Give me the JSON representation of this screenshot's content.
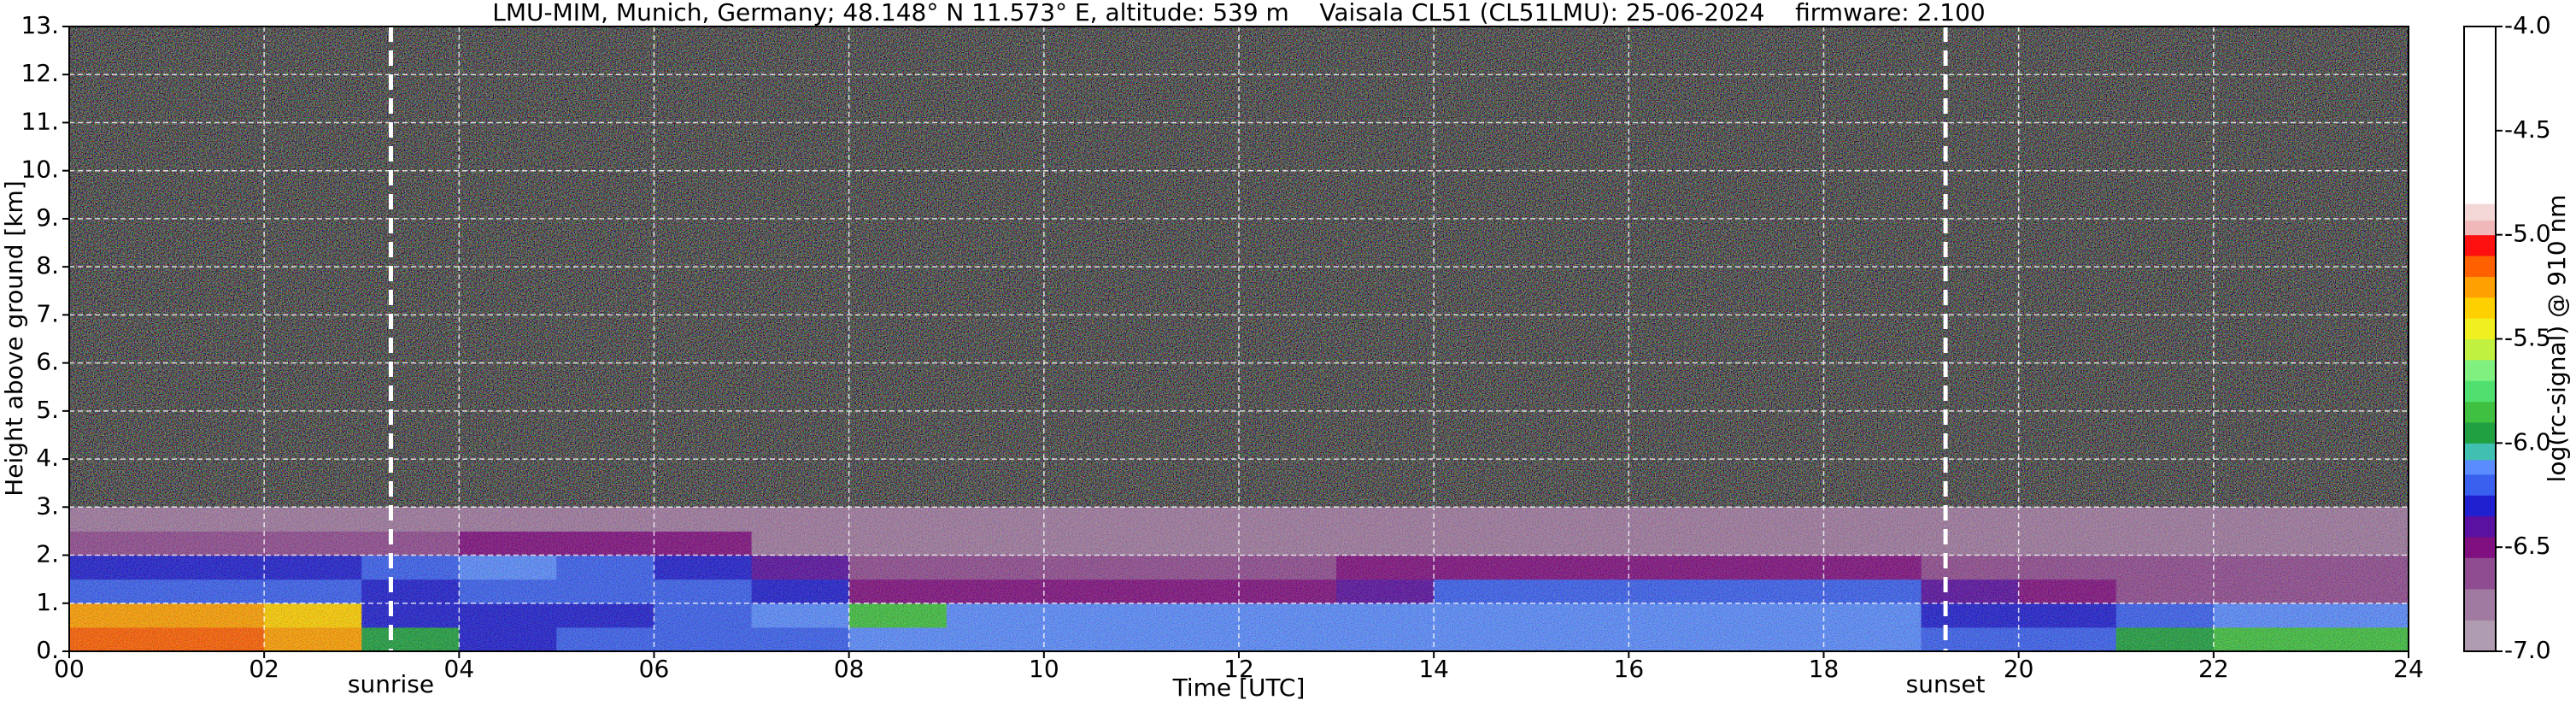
{
  "chart_data": {
    "type": "heatmap",
    "title": "LMU-MIM, Munich, Germany; 48.148° N 11.573° E, altitude: 539 m    Vaisala CL51 (CL51LMU): 25-06-2024    firmware: 2.100",
    "xlabel": "Time [UTC]",
    "ylabel": "Height above ground [km]",
    "colorbar_label": "log(rc-signal) @ 910 nm",
    "xlim": [
      0,
      24
    ],
    "xticks": [
      {
        "value": 0,
        "label": "00"
      },
      {
        "value": 2,
        "label": "02"
      },
      {
        "value": 4,
        "label": "04"
      },
      {
        "value": 6,
        "label": "06"
      },
      {
        "value": 8,
        "label": "08"
      },
      10,
      12,
      14,
      16,
      18,
      20,
      22,
      24
    ],
    "ylim": [
      0,
      13
    ],
    "yticks": [
      {
        "value": 0,
        "label": "0."
      },
      {
        "value": 1,
        "label": "1."
      },
      {
        "value": 2,
        "label": "2."
      },
      {
        "value": 3,
        "label": "3."
      },
      {
        "value": 4,
        "label": "4."
      },
      {
        "value": 5,
        "label": "5."
      },
      {
        "value": 6,
        "label": "6."
      },
      {
        "value": 7,
        "label": "7."
      },
      {
        "value": 8,
        "label": "8."
      },
      {
        "value": 9,
        "label": "9."
      },
      {
        "value": 10,
        "label": "10."
      },
      {
        "value": 11,
        "label": "11."
      },
      {
        "value": 12,
        "label": "12."
      },
      {
        "value": 13,
        "label": "13."
      }
    ],
    "clim": [
      -7,
      -4
    ],
    "cticks": [
      {
        "value": -4,
        "label": "-4.0"
      },
      -4.5,
      {
        "value": -5,
        "label": "-5.0"
      },
      -5.5,
      {
        "value": -6,
        "label": "-6.0"
      },
      -6.5,
      {
        "value": -7,
        "label": "-7.0"
      }
    ],
    "colorscale": [
      {
        "value": -7.0,
        "color": "#b09cb0"
      },
      {
        "value": -6.85,
        "color": "#a07aa0"
      },
      {
        "value": -6.7,
        "color": "#904c90"
      },
      {
        "value": -6.55,
        "color": "#801080"
      },
      {
        "value": -6.45,
        "color": "#5a10a0"
      },
      {
        "value": -6.35,
        "color": "#2020d0"
      },
      {
        "value": -6.25,
        "color": "#3a60f0"
      },
      {
        "value": -6.15,
        "color": "#5a8cff"
      },
      {
        "value": -6.08,
        "color": "#40c0b0"
      },
      {
        "value": -6.0,
        "color": "#20a040"
      },
      {
        "value": -5.9,
        "color": "#40c040"
      },
      {
        "value": -5.8,
        "color": "#50e070"
      },
      {
        "value": -5.7,
        "color": "#80f080"
      },
      {
        "value": -5.6,
        "color": "#c0f040"
      },
      {
        "value": -5.5,
        "color": "#f0f020"
      },
      {
        "value": -5.4,
        "color": "#ffd000"
      },
      {
        "value": -5.3,
        "color": "#ffa000"
      },
      {
        "value": -5.2,
        "color": "#ff6000"
      },
      {
        "value": -5.1,
        "color": "#ff1010"
      },
      {
        "value": -5.0,
        "color": "#f0b8b8"
      },
      {
        "value": -4.93,
        "color": "#f4d8d8"
      },
      {
        "value": -4.85,
        "color": "#ffffff"
      }
    ],
    "x_edges": [
      0,
      1,
      2,
      3,
      4,
      5,
      6,
      7,
      8,
      9,
      10,
      11,
      12,
      13,
      14,
      15,
      16,
      17,
      18,
      19,
      20,
      21,
      22,
      23,
      24
    ],
    "y_edges": [
      0,
      0.5,
      1,
      1.5,
      2,
      2.5,
      3
    ],
    "z": [
      [
        -5.2,
        -5.2,
        -5.25,
        -6.0,
        -6.3,
        -6.25,
        -6.2,
        -6.2,
        -6.1,
        -6.1,
        -6.1,
        -6.1,
        -6.1,
        -6.1,
        -6.1,
        -6.1,
        -6.1,
        -6.1,
        -6.1,
        -6.2,
        -6.2,
        -6.0,
        -5.9,
        -5.9
      ],
      [
        -5.3,
        -5.3,
        -5.4,
        -6.35,
        -6.35,
        -6.3,
        -6.2,
        -6.15,
        -5.9,
        -6.15,
        -6.15,
        -6.15,
        -6.15,
        -6.15,
        -6.15,
        -6.15,
        -6.15,
        -6.15,
        -6.15,
        -6.3,
        -6.3,
        -6.2,
        -6.1,
        -6.1
      ],
      [
        -6.25,
        -6.25,
        -6.25,
        -6.3,
        -6.2,
        -6.2,
        -6.2,
        -6.3,
        -6.5,
        -6.5,
        -6.5,
        -6.5,
        -6.5,
        -6.4,
        -6.25,
        -6.25,
        -6.25,
        -6.25,
        -6.25,
        -6.45,
        -6.5,
        -6.6,
        -6.6,
        -6.6
      ],
      [
        -6.3,
        -6.3,
        -6.3,
        -6.2,
        -6.15,
        -6.2,
        -6.3,
        -6.45,
        -6.6,
        -6.6,
        -6.6,
        -6.6,
        -6.6,
        -6.55,
        -6.55,
        -6.55,
        -6.55,
        -6.55,
        -6.55,
        -6.6,
        -6.6,
        -6.7,
        -6.7,
        -6.7
      ],
      [
        -6.6,
        -6.6,
        -6.6,
        -6.6,
        -6.5,
        -6.5,
        -6.5,
        -6.75,
        -6.75,
        -6.75,
        -6.75,
        -6.75,
        -6.75,
        -6.75,
        -6.75,
        -6.75,
        -6.75,
        -6.75,
        -6.75,
        -6.75,
        -6.75,
        -6.75,
        -6.75,
        -6.75
      ],
      [
        -6.85,
        -6.85,
        -6.85,
        -6.85,
        -6.85,
        -6.85,
        -6.85,
        -6.85,
        -6.85,
        -6.85,
        -6.85,
        -6.85,
        -6.85,
        -6.85,
        -6.85,
        -6.85,
        -6.85,
        -6.85,
        -6.85,
        -6.85,
        -6.85,
        -6.8,
        -6.8,
        -6.8
      ]
    ],
    "annotations": [
      {
        "text": "sunrise",
        "x": 3.3
      },
      {
        "text": "sunset",
        "x": 19.25
      }
    ],
    "grid": true
  }
}
